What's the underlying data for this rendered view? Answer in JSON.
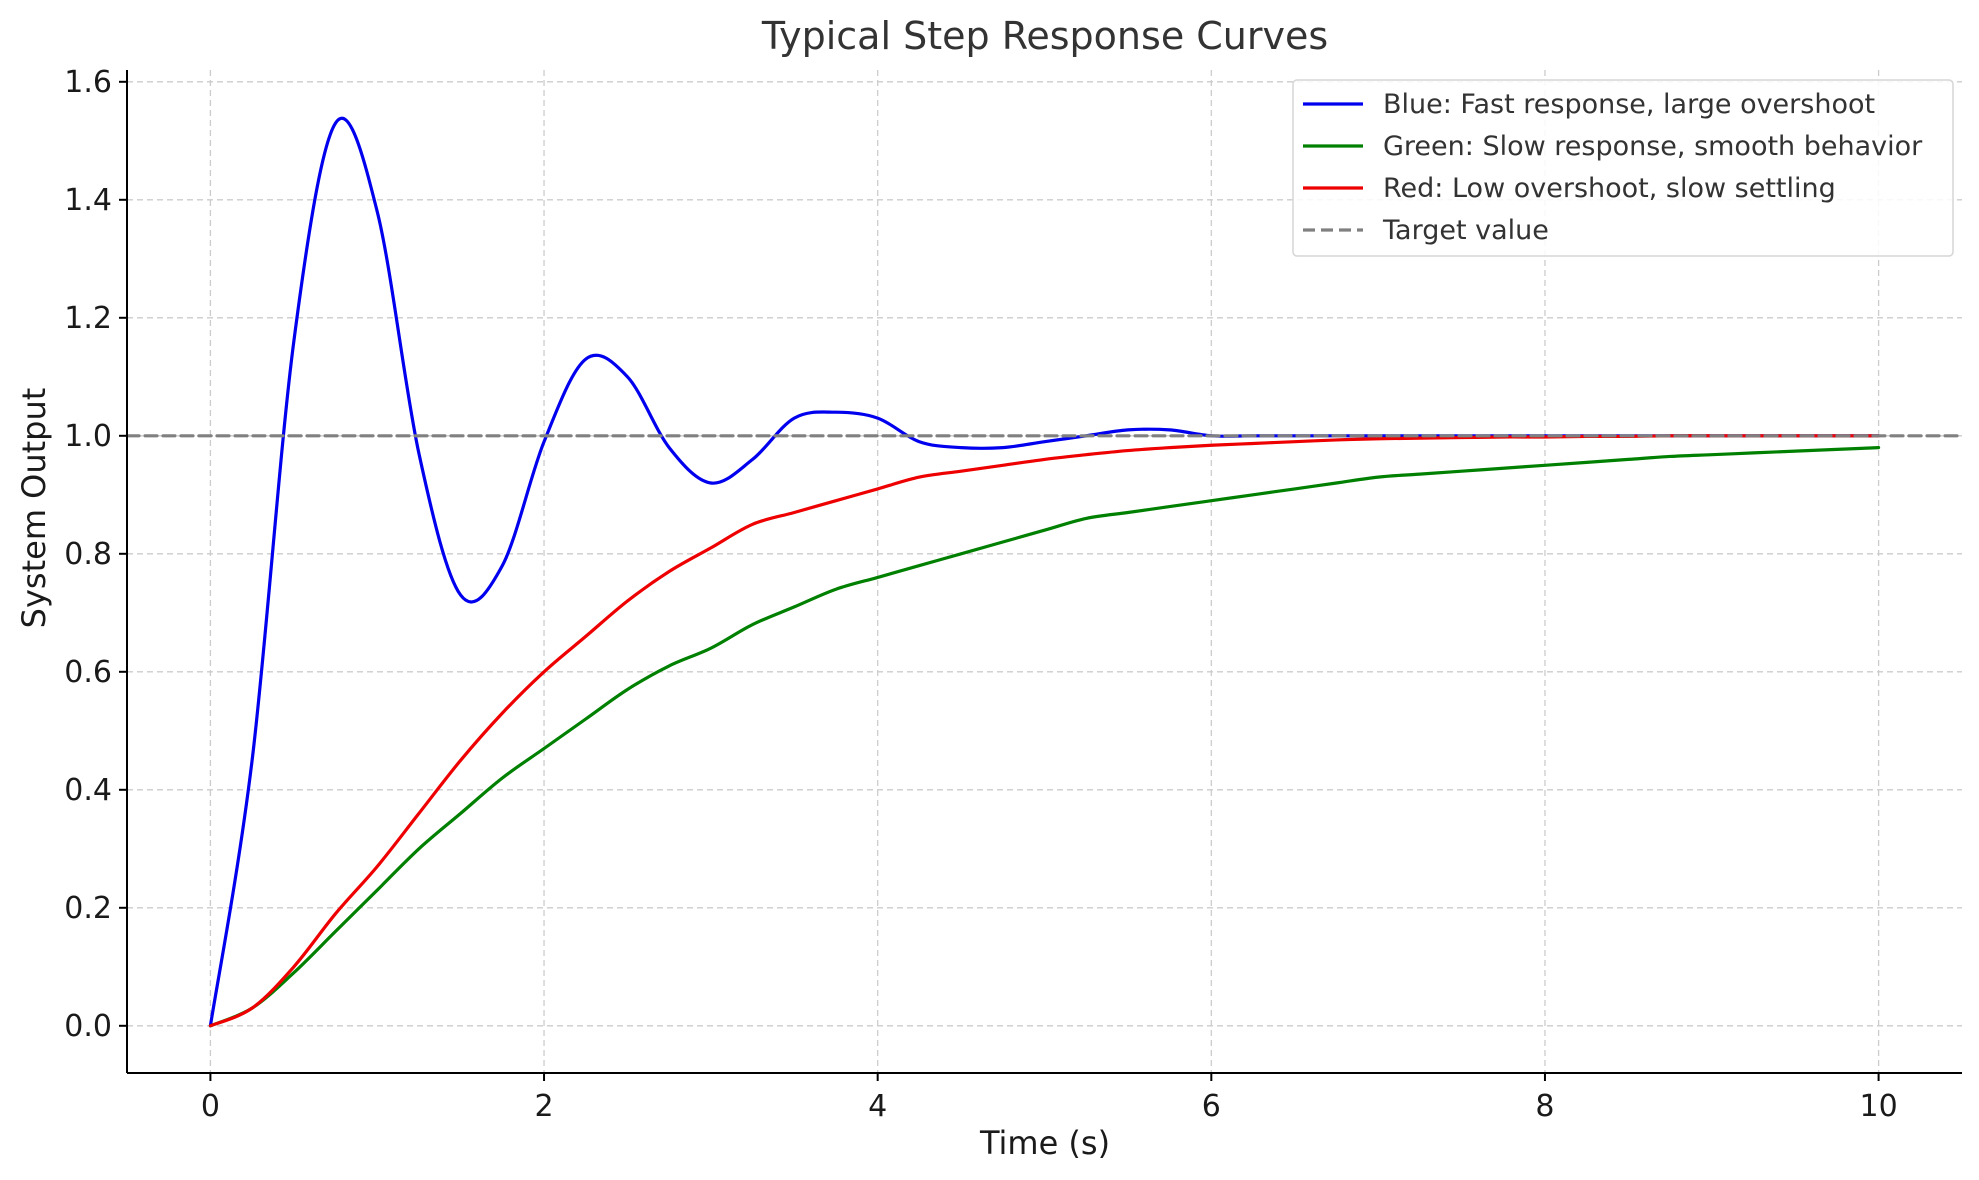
{
  "chart_data": {
    "type": "line",
    "title": "Typical Step Response Curves",
    "xlabel": "Time (s)",
    "ylabel": "System Output",
    "xlim": [
      -0.5,
      10.5
    ],
    "ylim": [
      -0.08,
      1.62
    ],
    "xticks": [
      0,
      2,
      4,
      6,
      8,
      10
    ],
    "xtick_labels": [
      "0",
      "2",
      "4",
      "6",
      "8",
      "10"
    ],
    "yticks": [
      0.0,
      0.2,
      0.4,
      0.6,
      0.8,
      1.0,
      1.2,
      1.4,
      1.6
    ],
    "ytick_labels": [
      "0.0",
      "0.2",
      "0.4",
      "0.6",
      "0.8",
      "1.0",
      "1.2",
      "1.4",
      "1.6"
    ],
    "grid": true,
    "legend_position": "top-right",
    "x": [
      0,
      0.25,
      0.5,
      0.75,
      1,
      1.25,
      1.5,
      1.75,
      2,
      2.25,
      2.5,
      2.75,
      3,
      3.25,
      3.5,
      3.75,
      4,
      4.25,
      4.5,
      4.75,
      5,
      5.25,
      5.5,
      5.75,
      6,
      6.25,
      6.5,
      6.75,
      7,
      7.25,
      7.5,
      7.75,
      8,
      8.25,
      8.5,
      8.75,
      9,
      9.25,
      9.5,
      9.75,
      10
    ],
    "series": [
      {
        "name": "Blue: Fast response, large overshoot",
        "color": "#0000ee",
        "style": "solid",
        "values": [
          0,
          0.45,
          1.16,
          1.53,
          1.38,
          0.97,
          0.73,
          0.78,
          0.99,
          1.13,
          1.1,
          0.98,
          0.92,
          0.96,
          1.03,
          1.04,
          1.03,
          0.99,
          0.98,
          0.98,
          0.99,
          1.0,
          1.01,
          1.01,
          1.0,
          1.0,
          1.0,
          1.0,
          1.0,
          1.0,
          1.0,
          1.0,
          1.0,
          1.0,
          1.0,
          1.0,
          1.0,
          1.0,
          1.0,
          1.0,
          1.0
        ]
      },
      {
        "name": "Green: Slow response, smooth behavior",
        "color": "#008000",
        "style": "solid",
        "values": [
          0,
          0.03,
          0.09,
          0.16,
          0.23,
          0.3,
          0.36,
          0.42,
          0.47,
          0.52,
          0.57,
          0.61,
          0.64,
          0.68,
          0.71,
          0.74,
          0.76,
          0.78,
          0.8,
          0.82,
          0.84,
          0.86,
          0.87,
          0.88,
          0.89,
          0.9,
          0.91,
          0.92,
          0.93,
          0.935,
          0.94,
          0.945,
          0.95,
          0.955,
          0.96,
          0.965,
          0.968,
          0.971,
          0.974,
          0.977,
          0.98
        ]
      },
      {
        "name": "Red: Low overshoot, slow settling",
        "color": "#ee0000",
        "style": "solid",
        "values": [
          0,
          0.03,
          0.1,
          0.19,
          0.27,
          0.36,
          0.45,
          0.53,
          0.6,
          0.66,
          0.72,
          0.77,
          0.81,
          0.85,
          0.87,
          0.89,
          0.91,
          0.93,
          0.94,
          0.95,
          0.96,
          0.968,
          0.975,
          0.98,
          0.984,
          0.987,
          0.99,
          0.993,
          0.995,
          0.996,
          0.997,
          0.998,
          0.998,
          0.999,
          0.999,
          1.0,
          1.0,
          1.0,
          1.0,
          1.0,
          1.0
        ]
      },
      {
        "name": "Target value",
        "color": "#808080",
        "style": "dashed",
        "constant": 1.0
      }
    ]
  }
}
